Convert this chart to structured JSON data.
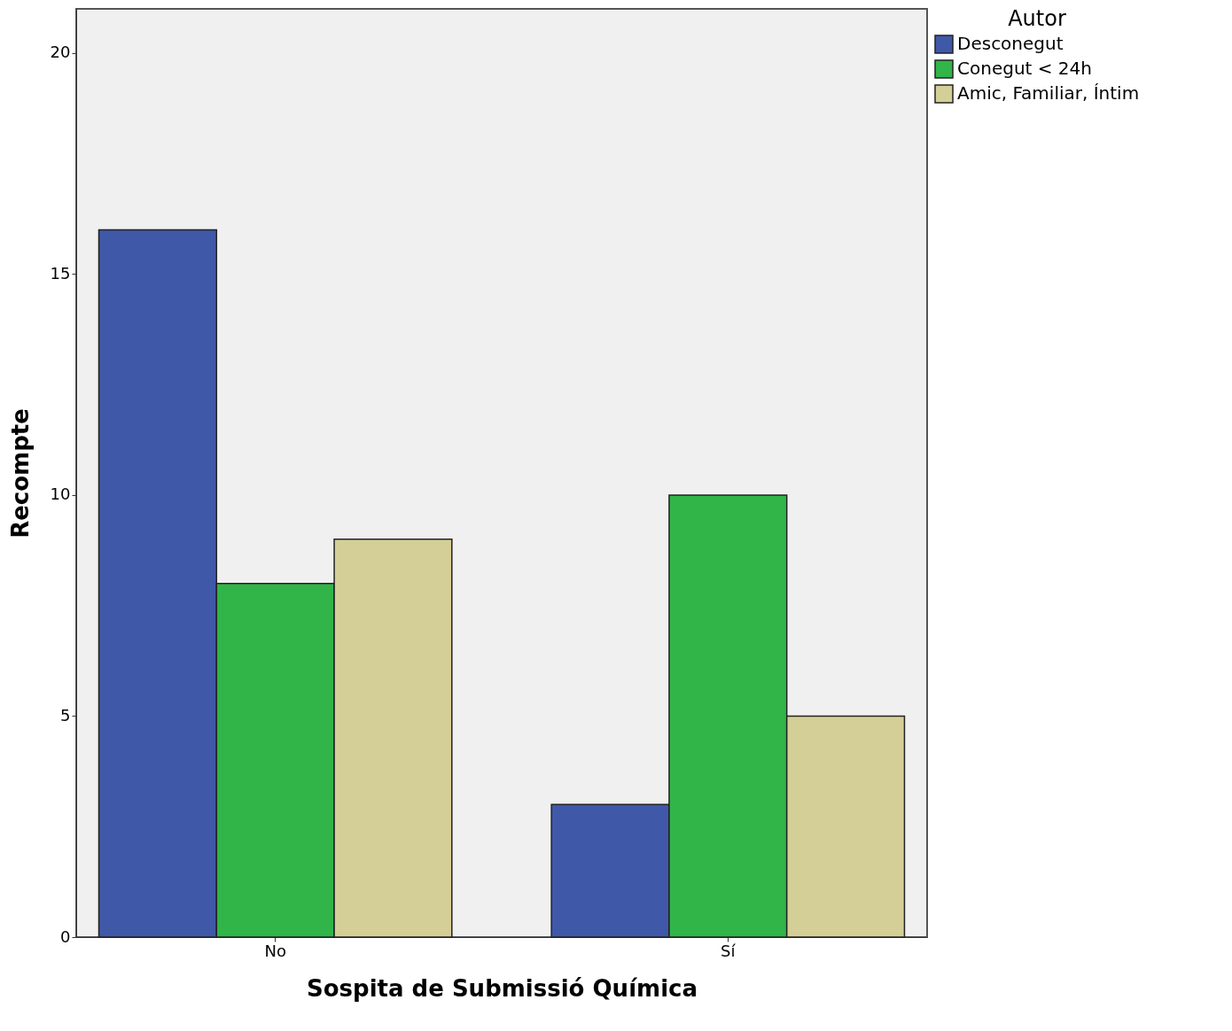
{
  "chart_data": {
    "type": "bar",
    "xlabel": "Sospita de Submissió Química",
    "ylabel": "Recompte",
    "legend_title": "Autor",
    "categories": [
      "No",
      "Sí"
    ],
    "series": [
      {
        "name": "Desconegut",
        "color": "#3f58a8",
        "values": [
          16,
          3
        ]
      },
      {
        "name": "Conegut < 24h",
        "color": "#31b549",
        "values": [
          8,
          10
        ]
      },
      {
        "name": "Amic, Familiar, Íntim",
        "color": "#d4cf96",
        "values": [
          9,
          5
        ]
      }
    ],
    "ylim": [
      0,
      21
    ],
    "yticks": [
      0,
      5,
      10,
      15,
      20
    ],
    "grid": false,
    "legend": "top right"
  }
}
